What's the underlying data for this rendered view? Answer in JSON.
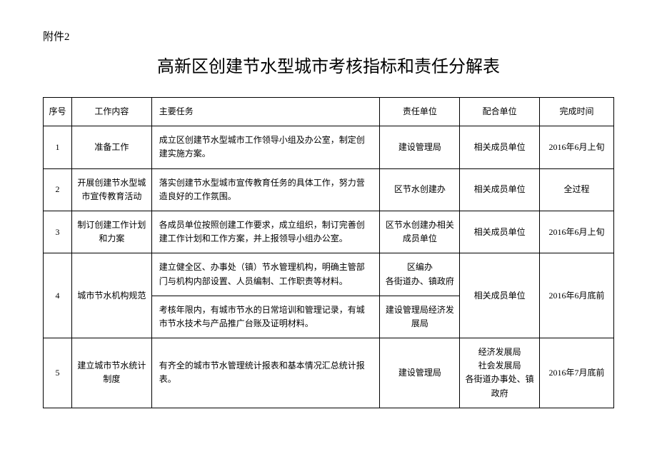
{
  "attachment": "附件2",
  "title": "高新区创建节水型城市考核指标和责任分解表",
  "headers": {
    "seq": "序号",
    "work": "工作内容",
    "task": "主要任务",
    "resp": "责任单位",
    "coop": "配合单位",
    "time": "完成时间"
  },
  "rows": [
    {
      "seq": "1",
      "work": "准备工作",
      "task": "成立区创建节水型城市工作领导小组及办公室，制定创建实施方案。",
      "resp": "建设管理局",
      "coop": "相关成员单位",
      "time": "2016年6月上旬"
    },
    {
      "seq": "2",
      "work": "开展创建节水型城市宣传教育活动",
      "task": "落实创建节水型城市宣传教育任务的具体工作，努力营造良好的工作氛围。",
      "resp": "区节水创建办",
      "coop": "相关成员单位",
      "time": "全过程"
    },
    {
      "seq": "3",
      "work": "制订创建工作计划和力案",
      "task": "各成员单位按照创建工作要求，成立组织，制订完善创建工作计划和工作方案，并上报领导小组办公室。",
      "resp": "区节水创建办相关成员单位",
      "coop": "相关成员单位",
      "time": "2016年6月上旬"
    },
    {
      "seq": "4",
      "work": "城市节水机构规范",
      "task1": "建立健全区、办事处（镇）节水管理机构，明确主管部门与机构内部设置、人员编制、工作职责等材料。",
      "resp1": "区编办\n各街道办、镇政府",
      "task2": "考核年限内，有城市节水的日常培训和管理记录，有城市节水技术与产品推广台账及证明材料。",
      "resp2": "建设管理局经济发展局",
      "coop": "相关成员单位",
      "time": "2016年6月底前"
    },
    {
      "seq": "5",
      "work": "建立城市节水统计制度",
      "task": "有齐全的城市节水管理统计报表和基本情况汇总统计报表。",
      "resp": "建设管理局",
      "coop": "经济发展局\n社会发展局\n各街道办事处、镇政府",
      "time": "2016年7月底前"
    }
  ]
}
